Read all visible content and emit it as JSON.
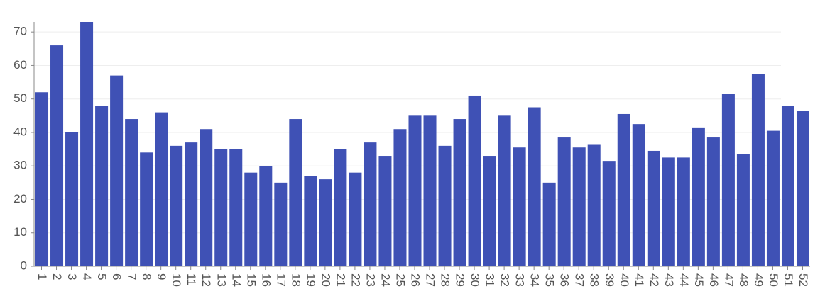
{
  "chart_data": {
    "type": "bar",
    "categories": [
      "1",
      "2",
      "3",
      "4",
      "5",
      "6",
      "7",
      "8",
      "9",
      "10",
      "11",
      "12",
      "13",
      "14",
      "15",
      "16",
      "17",
      "18",
      "19",
      "20",
      "21",
      "22",
      "23",
      "24",
      "25",
      "26",
      "27",
      "28",
      "29",
      "30",
      "31",
      "32",
      "33",
      "34",
      "35",
      "36",
      "37",
      "38",
      "39",
      "40",
      "41",
      "42",
      "43",
      "44",
      "45",
      "46",
      "47",
      "48",
      "49",
      "50",
      "51",
      "52"
    ],
    "values": [
      52,
      66,
      40,
      73,
      48,
      57,
      44,
      34,
      46,
      36,
      37,
      41,
      35,
      35,
      28,
      30,
      25,
      44,
      27,
      26,
      35,
      28,
      37,
      33,
      41,
      45,
      45,
      36,
      44,
      51,
      33,
      45,
      35.5,
      47.5,
      25,
      38.5,
      35.5,
      36.5,
      31.5,
      45.5,
      42.5,
      34.5,
      32.5,
      32.5,
      41.5,
      38.5,
      51.5,
      33.5,
      57.5,
      40.5,
      48,
      46.5
    ],
    "y_ticks": [
      0,
      10,
      20,
      30,
      40,
      50,
      60,
      70
    ],
    "ylim": [
      0,
      73
    ],
    "title": "",
    "xlabel": "",
    "ylabel": "",
    "grid": true,
    "bar_color": "#3f51b5",
    "grid_color": "#eeeeee",
    "axis_color": "#888888",
    "tick_label_color": "#555555"
  }
}
